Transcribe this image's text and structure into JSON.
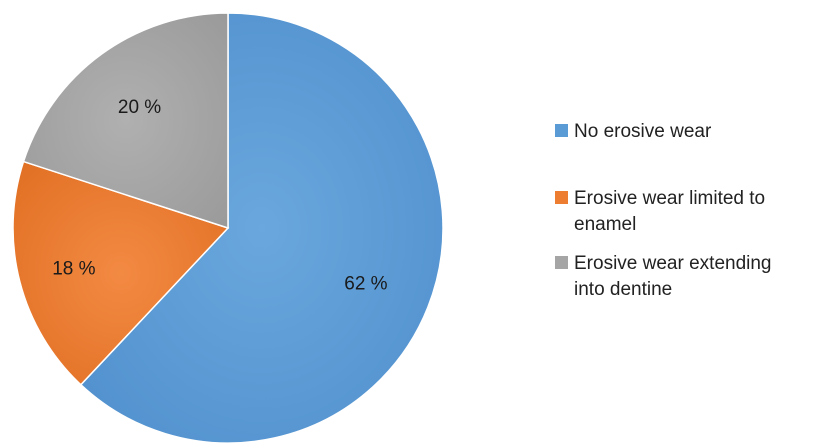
{
  "chart_data": {
    "type": "pie",
    "categories": [
      "No erosive wear",
      "Erosive wear limited to enamel",
      "Erosive wear extending into dentine"
    ],
    "values": [
      62,
      18,
      20
    ],
    "data_labels": [
      "62 %",
      "18 %",
      "20 %"
    ],
    "legend_lines": [
      [
        "No erosive wear"
      ],
      [
        "Erosive wear limited to",
        "enamel"
      ],
      [
        "Erosive wear extending",
        "into dentine"
      ]
    ],
    "colors": [
      "#5B9BD5",
      "#ED7D31",
      "#A5A5A5"
    ],
    "start_angle_deg": 0,
    "direction": "clockwise",
    "legend_position": "right",
    "title": ""
  }
}
